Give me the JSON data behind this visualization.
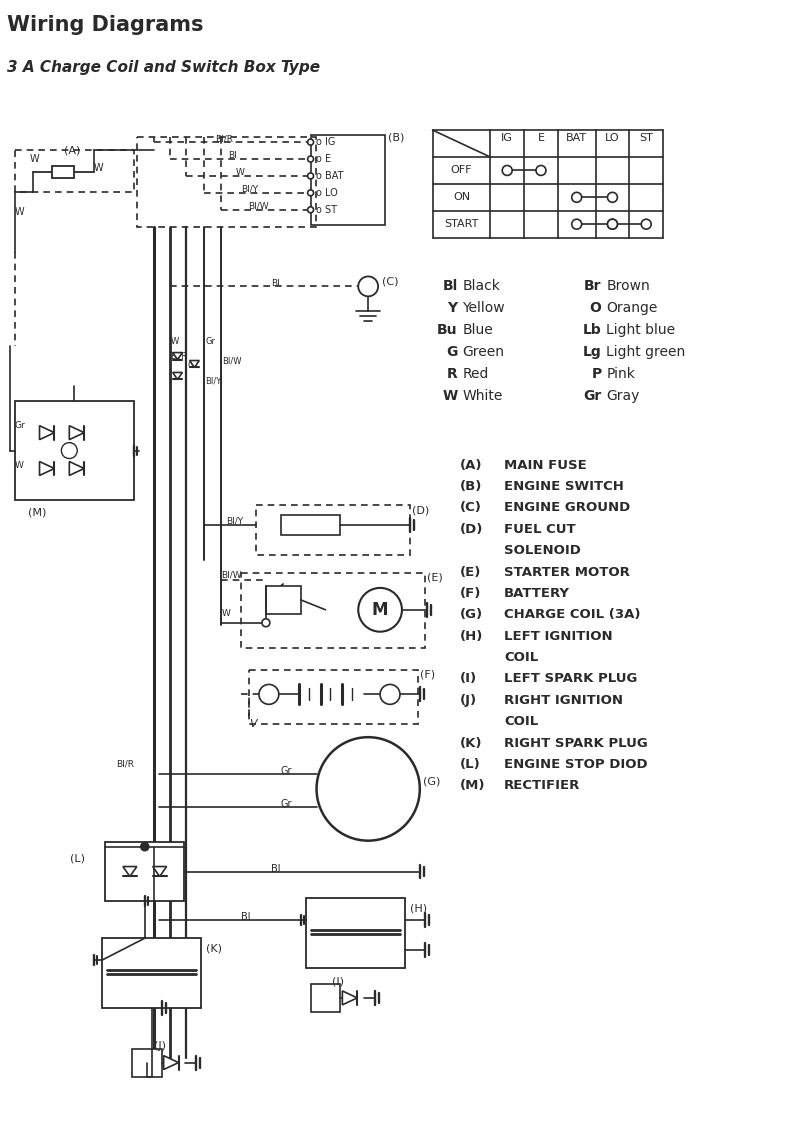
{
  "title": "Wiring Diagrams",
  "subtitle": "3 A Charge Coil and Switch Box Type",
  "bg_color": "#ffffff",
  "line_color": "#2a2a2a",
  "color_legend": [
    [
      "Bl",
      "Black",
      "Br",
      "Brown"
    ],
    [
      "Y",
      "Yellow",
      "O",
      "Orange"
    ],
    [
      "Bu",
      "Blue",
      "Lb",
      "Light blue"
    ],
    [
      "G",
      "Green",
      "Lg",
      "Light green"
    ],
    [
      "R",
      "Red",
      "P",
      "Pink"
    ],
    [
      "W",
      "White",
      "Gr",
      "Gray"
    ]
  ],
  "component_legend": [
    [
      "(A)",
      "MAIN FUSE"
    ],
    [
      "(B)",
      "ENGINE SWITCH"
    ],
    [
      "(C)",
      "ENGINE GROUND"
    ],
    [
      "(D)",
      "FUEL CUT"
    ],
    [
      "",
      "SOLENOID"
    ],
    [
      "(E)",
      "STARTER MOTOR"
    ],
    [
      "(F)",
      "BATTERY"
    ],
    [
      "(G)",
      "CHARGE COIL (3A)"
    ],
    [
      "(H)",
      "LEFT IGNITION"
    ],
    [
      "",
      "COIL"
    ],
    [
      "(I)",
      "LEFT SPARK PLUG"
    ],
    [
      "(J)",
      "RIGHT IGNITION"
    ],
    [
      "",
      "COIL"
    ],
    [
      "(K)",
      "RIGHT SPARK PLUG"
    ],
    [
      "(L)",
      "ENGINE STOP DIOD"
    ],
    [
      "(M)",
      "RECTIFIER"
    ]
  ]
}
